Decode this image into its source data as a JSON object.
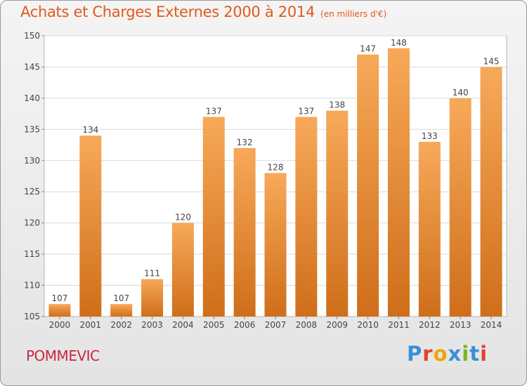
{
  "header": {
    "title": "Achats et Charges Externes 2000 à 2014",
    "subtitle": "(en milliers d'€)"
  },
  "footer": {
    "commune": "POMMEVIC",
    "logo_text": "Proxiti"
  },
  "colors": {
    "title": "#e05a1e",
    "commune": "#c9283e",
    "bar_top": "#f7a959",
    "bar_bottom": "#cf6e1a",
    "logo": [
      "#3a8fd6",
      "#e0432c",
      "#f2a400",
      "#3a8fd6",
      "#7ab51d",
      "#3a8fd6",
      "#e0432c"
    ]
  },
  "chart_data": {
    "type": "bar",
    "categories": [
      "2000",
      "2001",
      "2002",
      "2003",
      "2004",
      "2005",
      "2006",
      "2007",
      "2008",
      "2009",
      "2010",
      "2011",
      "2012",
      "2013",
      "2014"
    ],
    "values": [
      107,
      134,
      107,
      111,
      120,
      137,
      132,
      128,
      137,
      138,
      147,
      148,
      133,
      140,
      145
    ],
    "ylim": [
      105,
      150
    ],
    "yticks": [
      105,
      110,
      115,
      120,
      125,
      130,
      135,
      140,
      145,
      150
    ],
    "grid": true
  }
}
